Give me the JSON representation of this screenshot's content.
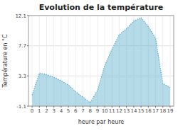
{
  "chart_data": {
    "type": "area",
    "title": "Evolution de la température",
    "xlabel": "heure par heure",
    "ylabel": "Température en °C",
    "x": [
      0,
      1,
      2,
      3,
      4,
      5,
      6,
      7,
      8,
      9,
      10,
      11,
      12,
      13,
      14,
      15,
      16,
      17,
      18,
      19
    ],
    "values": [
      0.5,
      3.7,
      3.5,
      3.1,
      2.6,
      2.0,
      1.0,
      0.2,
      -0.6,
      1.2,
      4.8,
      7.2,
      9.3,
      10.2,
      11.3,
      11.8,
      10.5,
      8.8,
      2.2,
      1.6
    ],
    "xlim": [
      -0.5,
      19.5
    ],
    "ylim": [
      -1.1,
      12.1
    ],
    "xticks": [
      0,
      1,
      2,
      3,
      4,
      5,
      6,
      7,
      8,
      9,
      10,
      11,
      12,
      13,
      14,
      15,
      16,
      17,
      18,
      19
    ],
    "yticks": [
      -1.1,
      3.3,
      7.7,
      12.1
    ],
    "color": "#5aafcc",
    "line_style": "dotted",
    "grid": true
  }
}
